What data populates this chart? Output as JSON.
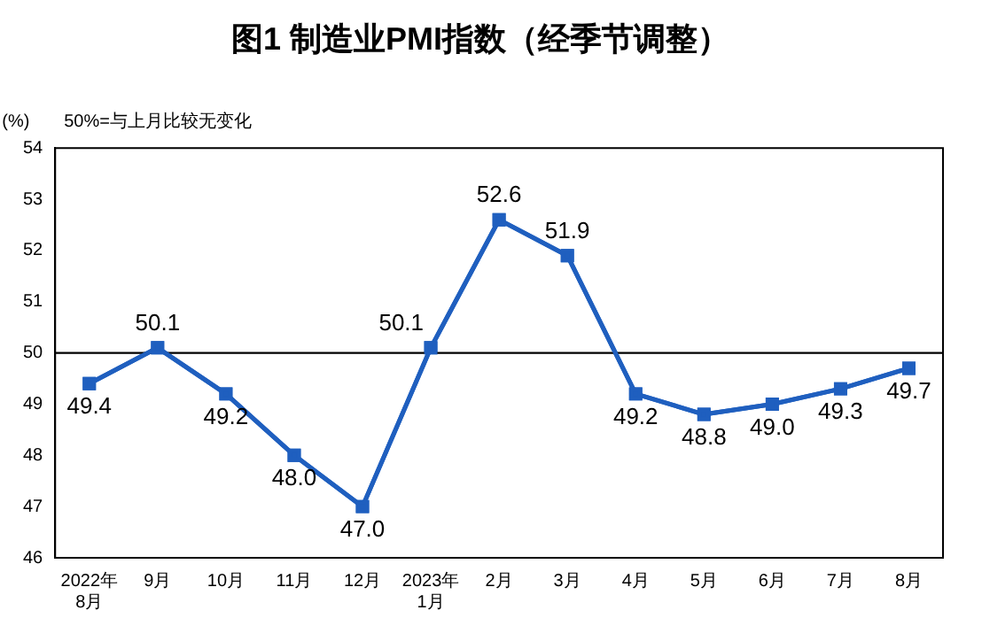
{
  "chart_data": {
    "type": "line",
    "title": "图1 制造业PMI指数（经季节调整）",
    "ylabel": "(%)",
    "annotations": [
      "50%=与上月比较无变化"
    ],
    "categories": [
      "2022年\n8月",
      "9月",
      "10月",
      "11月",
      "12月",
      "2023年\n1月",
      "2月",
      "3月",
      "4月",
      "5月",
      "6月",
      "7月",
      "8月"
    ],
    "series": [
      {
        "color": "#1f5fbf",
        "values": [
          49.4,
          50.1,
          49.2,
          48.0,
          47.0,
          50.1,
          52.6,
          51.9,
          49.2,
          48.8,
          49.0,
          49.3,
          49.7
        ],
        "value_labels": [
          "49.4",
          "50.1",
          "49.2",
          "48.0",
          "47.0",
          "50.1",
          "52.6",
          "51.9",
          "49.2",
          "48.8",
          "49.0",
          "49.3",
          "49.7"
        ]
      }
    ],
    "ylim": [
      46,
      54
    ],
    "yticks": [
      46,
      47,
      48,
      49,
      50,
      51,
      52,
      53,
      54
    ],
    "grid": false,
    "legend": false,
    "marker": "square",
    "line_style": "solid",
    "ref_lines": [
      {
        "axis": "y",
        "value": 50,
        "color": "#000000"
      }
    ]
  }
}
